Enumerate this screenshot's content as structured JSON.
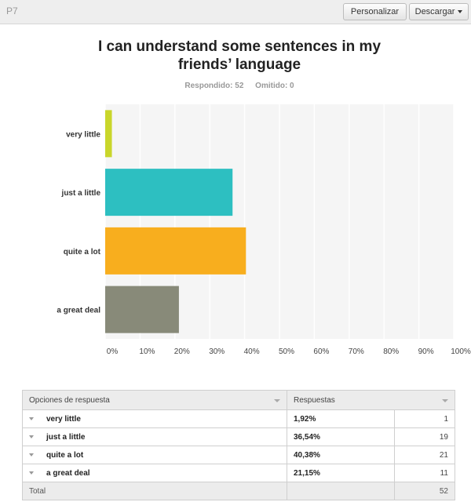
{
  "header": {
    "question_number": "P7",
    "customize_label": "Personalizar",
    "download_label": "Descargar"
  },
  "question": {
    "title": "I can understand some sentences in my friends’ language",
    "answered": "Respondido: 52",
    "skipped": "Omitido: 0"
  },
  "chart_data": {
    "type": "bar",
    "orientation": "horizontal",
    "categories": [
      "very little",
      "just a little",
      "quite a lot",
      "a great deal"
    ],
    "values": [
      1.92,
      36.54,
      40.38,
      21.15
    ],
    "colors": [
      "#c9d62b",
      "#2dbfc1",
      "#f8ae1e",
      "#888a79"
    ],
    "xlim": [
      0,
      100
    ],
    "ticks": [
      "0%",
      "10%",
      "20%",
      "30%",
      "40%",
      "50%",
      "60%",
      "70%",
      "80%",
      "90%",
      "100%"
    ],
    "grid": true
  },
  "table": {
    "headers": [
      "Opciones de respuesta",
      "Respuestas"
    ],
    "rows": [
      {
        "option": "very little",
        "percent": "1,92%",
        "count": "1"
      },
      {
        "option": "just a little",
        "percent": "36,54%",
        "count": "19"
      },
      {
        "option": "quite a lot",
        "percent": "40,38%",
        "count": "21"
      },
      {
        "option": "a great deal",
        "percent": "21,15%",
        "count": "11"
      }
    ],
    "total_label": "Total",
    "total_count": "52"
  }
}
